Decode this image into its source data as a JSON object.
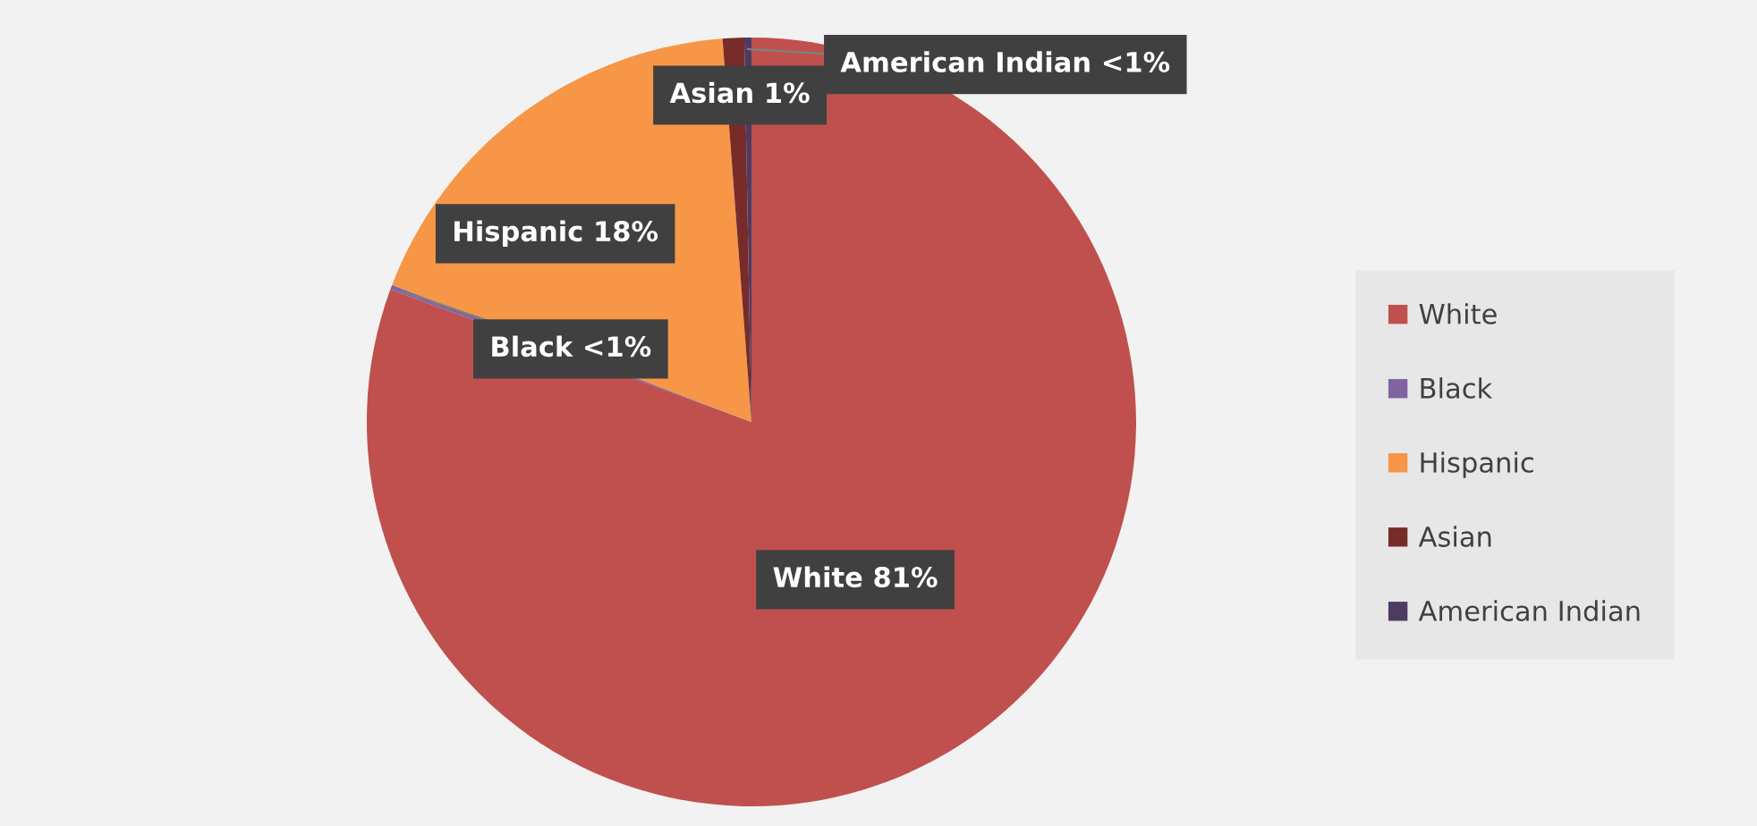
{
  "chart_data": {
    "type": "pie",
    "categories": [
      "White",
      "Black",
      "Hispanic",
      "Asian",
      "American Indian"
    ],
    "values": [
      80.6,
      0.2,
      18.0,
      0.9,
      0.3
    ],
    "colors": [
      "#c0504d",
      "#8064a2",
      "#f79646",
      "#772c2a",
      "#4d3b62"
    ],
    "value_labels": [
      "White 81%",
      "Black <1%",
      "Hispanic 18%",
      "Asian 1%",
      "American Indian <1%"
    ],
    "legend": "right"
  }
}
